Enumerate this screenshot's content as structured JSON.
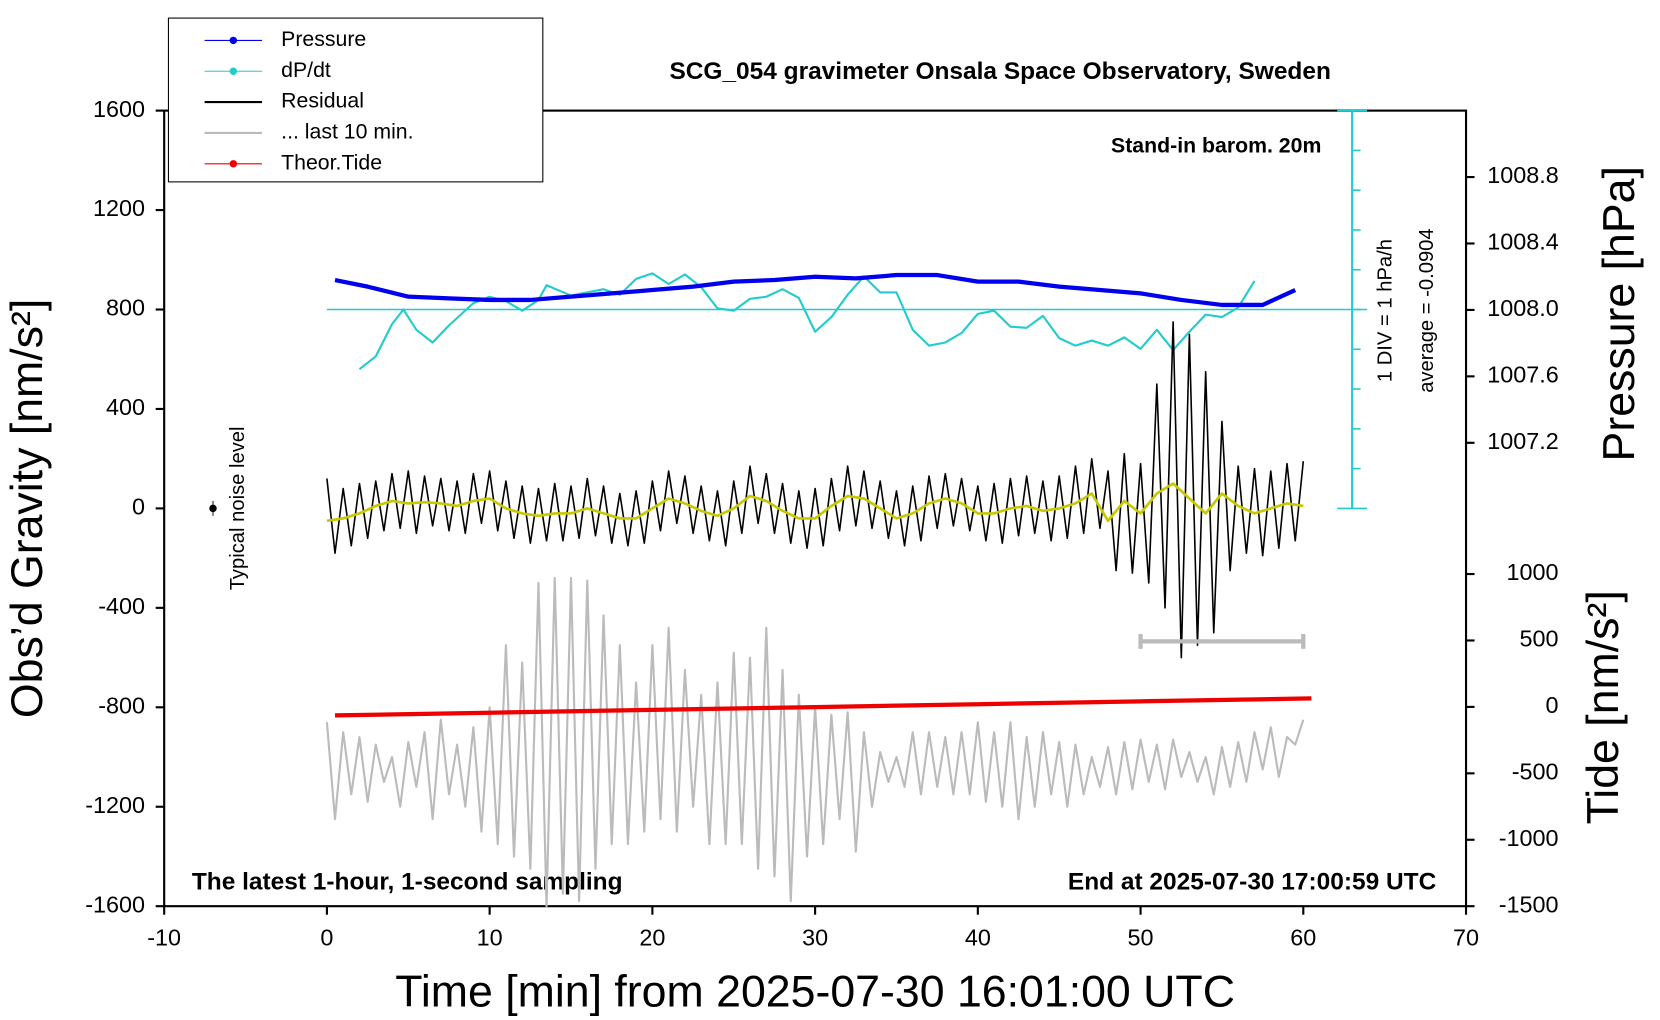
{
  "chart_data": {
    "type": "line",
    "title": "SCG_054 gravimeter Onsala Space Observatory, Sweden",
    "subtitle": "Stand-in barom. 20m",
    "bottom_left_note": "The latest 1-hour, 1-second sampling",
    "bottom_right_note": "End at 2025-07-30 17:00:59 UTC",
    "x_label": "Time [min] from 2025-07-30 16:01:00 UTC",
    "y_label": "Obs’d Gravity [nm/s²]",
    "y2_label": "Pressure [hPa]",
    "y3_label": "Tide [nm/s²]",
    "xlim": [
      -10,
      70
    ],
    "xticks": [
      -10,
      0,
      10,
      20,
      30,
      40,
      50,
      60,
      70
    ],
    "ylim": [
      -1600,
      1600
    ],
    "yticks": [
      -1600,
      -1200,
      -800,
      -400,
      0,
      400,
      800,
      1200,
      1600
    ],
    "y2lim": [
      1004.41,
      1009.2
    ],
    "y2ticks": [
      1007.2,
      1007.6,
      {
        "value": 1008.0,
        "label": "1008.0"
      },
      1008.4,
      1008.8
    ],
    "y3lim": [
      -1500,
      4488
    ],
    "y3ticks": [
      -1500,
      -1000,
      -500,
      0,
      500,
      1000
    ],
    "y4lim": [
      -15.0904,
      4.9096
    ],
    "y4ticks": [
      -5.0904,
      -4.0904,
      -3.0904,
      -2.0904,
      -1.0904,
      -0.0904,
      0.9096,
      1.9096,
      2.9096,
      3.9096,
      4.9096
    ],
    "dpdt_scale_label": "1 DIV = 1 hPa/h",
    "dpdt_average_label": "average = -0.0904",
    "dpdt_average": -0.0904,
    "noise_level": {
      "label": "Typical noise level",
      "x": -7,
      "value": 0,
      "error": 30
    },
    "last10_bar": {
      "x": [
        50,
        60
      ],
      "value": -535,
      "color": "#bbbbbb"
    },
    "x": [
      0,
      0.5,
      1,
      1.5,
      2,
      2.5,
      3,
      3.5,
      4,
      4.5,
      5,
      5.5,
      6,
      6.5,
      7,
      7.5,
      8,
      8.5,
      9,
      9.5,
      10,
      10.5,
      11,
      11.5,
      12,
      12.5,
      13,
      13.5,
      14,
      14.5,
      15,
      15.5,
      16,
      16.5,
      17,
      17.5,
      18,
      18.5,
      19,
      19.5,
      20,
      20.5,
      21,
      21.5,
      22,
      22.5,
      23,
      23.5,
      24,
      24.5,
      25,
      25.5,
      26,
      26.5,
      27,
      27.5,
      28,
      28.5,
      29,
      29.5,
      30,
      30.5,
      31,
      31.5,
      32,
      32.5,
      33,
      33.5,
      34,
      34.5,
      35,
      35.5,
      36,
      36.5,
      37,
      37.5,
      38,
      38.5,
      39,
      39.5,
      40,
      40.5,
      41,
      41.5,
      42,
      42.5,
      43,
      43.5,
      44,
      44.5,
      45,
      45.5,
      46,
      46.5,
      47,
      47.5,
      48,
      48.5,
      49,
      49.5,
      50,
      50.5,
      51,
      51.5,
      52,
      52.5,
      53,
      53.5,
      54,
      54.5,
      55,
      55.5,
      56,
      56.5,
      57,
      57.5,
      58,
      58.5,
      59,
      59.5,
      60
    ],
    "series": [
      {
        "name": "Pressure",
        "color": "#0000ee",
        "axis": "y2",
        "marker": true,
        "width": 4,
        "x": [
          0.5,
          2.5,
          5,
          7.5,
          10,
          12.5,
          15,
          17.5,
          20,
          22.5,
          25,
          27.5,
          30,
          32.5,
          35,
          37.5,
          40,
          42.5,
          45,
          47.5,
          50,
          52.5,
          55,
          57.5,
          59.5
        ],
        "values": [
          1008.18,
          1008.14,
          1008.08,
          1008.07,
          1008.06,
          1008.06,
          1008.08,
          1008.1,
          1008.12,
          1008.14,
          1008.17,
          1008.18,
          1008.2,
          1008.19,
          1008.21,
          1008.21,
          1008.17,
          1008.17,
          1008.14,
          1008.12,
          1008.1,
          1008.06,
          1008.03,
          1008.03,
          1008.12
        ]
      },
      {
        "name": "dP/dt",
        "color": "#22cccc",
        "axis": "y4",
        "marker": true,
        "width": 2,
        "x": [
          2,
          3,
          4,
          4.7,
          5.5,
          6.5,
          7.5,
          9,
          10,
          11,
          12,
          13,
          13.5,
          15,
          16,
          17,
          18,
          19,
          20,
          21,
          22,
          23,
          24,
          25,
          26,
          27,
          28,
          29,
          30,
          31,
          32,
          33,
          34,
          35,
          36,
          37,
          38,
          39,
          40,
          41,
          42,
          43,
          44,
          45,
          46,
          47,
          48,
          49,
          50,
          51,
          52,
          53,
          54,
          55,
          56,
          57
        ],
        "values": [
          -1.59,
          -1.27,
          -0.46,
          -0.09,
          -0.6,
          -0.92,
          -0.49,
          0.07,
          0.23,
          0.12,
          -0.12,
          0.15,
          0.52,
          0.26,
          0.34,
          0.42,
          0.28,
          0.68,
          0.82,
          0.55,
          0.79,
          0.47,
          -0.06,
          -0.12,
          0.18,
          0.23,
          0.42,
          0.2,
          -0.65,
          -0.28,
          0.28,
          0.74,
          0.34,
          0.34,
          -0.6,
          -1.0,
          -0.92,
          -0.68,
          -0.2,
          -0.12,
          -0.52,
          -0.55,
          -0.25,
          -0.81,
          -1.0,
          -0.87,
          -1.0,
          -0.79,
          -1.08,
          -0.6,
          -1.11,
          -0.65,
          -0.22,
          -0.28,
          -0.04,
          0.63
        ]
      },
      {
        "name": "Residual",
        "color": "#000000",
        "axis": "y",
        "width": 1.5,
        "values": [
          120,
          -180,
          80,
          -150,
          100,
          -120,
          110,
          -90,
          140,
          -80,
          150,
          -100,
          130,
          -70,
          120,
          -90,
          110,
          -100,
          140,
          -60,
          150,
          -90,
          110,
          -120,
          90,
          -140,
          80,
          -130,
          100,
          -130,
          90,
          -120,
          120,
          -110,
          90,
          -140,
          60,
          -150,
          70,
          -140,
          110,
          -90,
          150,
          -60,
          130,
          -100,
          90,
          -130,
          70,
          -150,
          110,
          -100,
          170,
          -60,
          140,
          -100,
          100,
          -140,
          70,
          -160,
          80,
          -150,
          120,
          -90,
          170,
          -70,
          150,
          -80,
          110,
          -120,
          70,
          -150,
          90,
          -130,
          130,
          -80,
          140,
          -70,
          120,
          -90,
          90,
          -130,
          100,
          -140,
          120,
          -110,
          130,
          -100,
          110,
          -130,
          130,
          -120,
          170,
          -100,
          200,
          -80,
          150,
          -250,
          220,
          -260,
          180,
          -300,
          500,
          -400,
          750,
          -600,
          700,
          -550,
          550,
          -500,
          350,
          -250,
          170,
          -180,
          160,
          -190,
          150,
          -160,
          180,
          -130,
          190
        ]
      },
      {
        "name": "... last 10 min.",
        "color": "#bbbbbb",
        "axis": "y",
        "width": 2,
        "values": [
          -860,
          -1250,
          -900,
          -1150,
          -920,
          -1180,
          -950,
          -1100,
          -1000,
          -1200,
          -940,
          -1120,
          -900,
          -1250,
          -850,
          -1150,
          -950,
          -1200,
          -880,
          -1300,
          -800,
          -1350,
          -550,
          -1400,
          -620,
          -1450,
          -300,
          -1600,
          -280,
          -1550,
          -280,
          -1580,
          -290,
          -1450,
          -430,
          -1350,
          -550,
          -1350,
          -700,
          -1300,
          -550,
          -1250,
          -480,
          -1300,
          -650,
          -1200,
          -750,
          -1350,
          -700,
          -1350,
          -580,
          -1350,
          -600,
          -1450,
          -480,
          -1480,
          -650,
          -1580,
          -750,
          -1400,
          -800,
          -1350,
          -830,
          -1250,
          -820,
          -1380,
          -900,
          -1200,
          -980,
          -1100,
          -1000,
          -1120,
          -900,
          -1150,
          -900,
          -1120,
          -920,
          -1150,
          -900,
          -1150,
          -860,
          -1180,
          -900,
          -1200,
          -860,
          -1250,
          -920,
          -1200,
          -900,
          -1150,
          -940,
          -1200,
          -950,
          -1150,
          -1000,
          -1120,
          -960,
          -1150,
          -940,
          -1130,
          -930,
          -1100,
          -950,
          -1130,
          -930,
          -1080,
          -980,
          -1100,
          -1000,
          -1150,
          -960,
          -1120,
          -940,
          -1100,
          -900,
          -1050,
          -880,
          -1080,
          -920,
          -950,
          -850
        ]
      },
      {
        "name": "Theor.Tide",
        "color": "#ee0000",
        "axis": "y3",
        "marker": true,
        "width": 4,
        "x": [
          0.5,
          10,
          20,
          30,
          40,
          50,
          60.5
        ],
        "values": [
          -64,
          -44,
          -22,
          -1,
          20,
          42,
          64
        ]
      },
      {
        "color": "#c8c800",
        "axis": "y",
        "width": 2.5,
        "x": [
          0,
          1,
          2,
          3,
          4,
          5,
          6,
          7,
          8,
          9,
          10,
          11,
          12,
          13,
          14,
          15,
          16,
          17,
          18,
          19,
          20,
          21,
          22,
          23,
          24,
          25,
          26,
          27,
          28,
          29,
          30,
          31,
          32,
          33,
          34,
          35,
          36,
          37,
          38,
          39,
          40,
          41,
          42,
          43,
          44,
          45,
          46,
          47,
          48,
          49,
          50,
          51,
          52,
          53,
          54,
          55,
          56,
          57,
          58,
          59,
          60
        ],
        "values": [
          -50,
          -40,
          -20,
          10,
          30,
          20,
          25,
          20,
          10,
          30,
          40,
          0,
          -20,
          -30,
          -20,
          -20,
          0,
          -20,
          -40,
          -40,
          0,
          40,
          20,
          -10,
          -30,
          0,
          50,
          30,
          -10,
          -40,
          -40,
          10,
          50,
          40,
          0,
          -40,
          -20,
          20,
          40,
          20,
          -20,
          -20,
          0,
          10,
          -10,
          0,
          20,
          60,
          -50,
          30,
          -20,
          60,
          100,
          40,
          -20,
          60,
          10,
          -20,
          0,
          20,
          10
        ]
      }
    ]
  }
}
